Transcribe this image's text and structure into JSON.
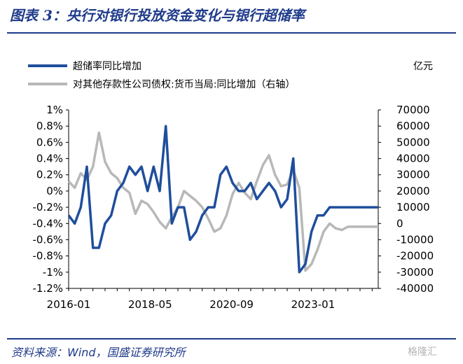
{
  "title": "图表 3：央行对银行投放资金变化与银行超储率",
  "source": "资料来源：Wind，国盛证券研究所",
  "watermark": "格隆汇",
  "chart_data": {
    "type": "line",
    "x": [
      "2016-01",
      "2016-03",
      "2016-05",
      "2016-07",
      "2016-09",
      "2016-11",
      "2017-01",
      "2017-03",
      "2017-05",
      "2017-07",
      "2017-09",
      "2017-11",
      "2018-01",
      "2018-03",
      "2018-05",
      "2018-07",
      "2018-09",
      "2018-11",
      "2019-01",
      "2019-03",
      "2019-05",
      "2019-07",
      "2019-09",
      "2019-11",
      "2020-01",
      "2020-03",
      "2020-05",
      "2020-07",
      "2020-09",
      "2020-11",
      "2021-01",
      "2021-03",
      "2021-05",
      "2021-07",
      "2021-09",
      "2021-11",
      "2022-01",
      "2022-03",
      "2022-05",
      "2022-07",
      "2022-09",
      "2022-11",
      "2023-01",
      "2023-03",
      "2023-05",
      "2023-07",
      "2023-09",
      "2023-11",
      "2024-01",
      "2024-03",
      "2024-05",
      "2024-07"
    ],
    "x_ticks": [
      "2016-01",
      "2018-05",
      "2020-09",
      "2023-01"
    ],
    "left_axis": {
      "ylim": [
        -1.2,
        1.0
      ],
      "ticks": [
        "1%",
        "0.8%",
        "0.6%",
        "0.4%",
        "0.2%",
        "0%",
        "-0.2%",
        "-0.4%",
        "-0.6%",
        "-0.8%",
        "-1%",
        "-1.2%"
      ]
    },
    "right_axis": {
      "unit": "亿元",
      "ylim": [
        -40000,
        70000
      ],
      "ticks": [
        "70000",
        "60000",
        "50000",
        "40000",
        "30000",
        "20000",
        "10000",
        "0",
        "-10000",
        "-20000",
        "-30000",
        "-40000"
      ]
    },
    "legend_position": "top-left",
    "series": [
      {
        "name": "超储率同比增加",
        "axis": "left",
        "color": "#1f4e9c",
        "values": [
          -0.3,
          -0.4,
          -0.2,
          0.3,
          -0.7,
          -0.7,
          -0.4,
          -0.3,
          0.0,
          0.1,
          0.3,
          0.2,
          0.3,
          0.0,
          0.3,
          0.0,
          0.8,
          -0.4,
          -0.2,
          -0.2,
          -0.6,
          -0.5,
          -0.3,
          -0.2,
          -0.2,
          0.2,
          0.3,
          0.1,
          0.0,
          0.0,
          0.1,
          -0.1,
          0.0,
          0.1,
          0.0,
          -0.2,
          -0.1,
          0.4,
          -1.0,
          -0.9,
          -0.5,
          -0.3,
          -0.3,
          -0.2,
          -0.2,
          -0.2,
          -0.2,
          -0.2,
          -0.2,
          -0.2,
          -0.2,
          -0.2
        ]
      },
      {
        "name": "对其他存款性公司债权:货币当局:同比增加（右轴）",
        "axis": "right",
        "color": "#b8b8b8",
        "values": [
          26000,
          22000,
          31000,
          27000,
          35000,
          56000,
          38000,
          31000,
          28000,
          22000,
          19000,
          6000,
          14000,
          12000,
          7000,
          1000,
          -3000,
          4000,
          10000,
          20000,
          17000,
          14000,
          10000,
          3000,
          -5000,
          -3000,
          5000,
          18000,
          25000,
          19000,
          15000,
          26000,
          36000,
          42000,
          30000,
          23000,
          24000,
          33000,
          22000,
          -29000,
          -25000,
          -16000,
          -5000,
          0,
          -3000,
          -4000,
          -2000,
          -2000,
          -2000,
          -2000,
          -2000,
          -2000
        ]
      }
    ]
  }
}
